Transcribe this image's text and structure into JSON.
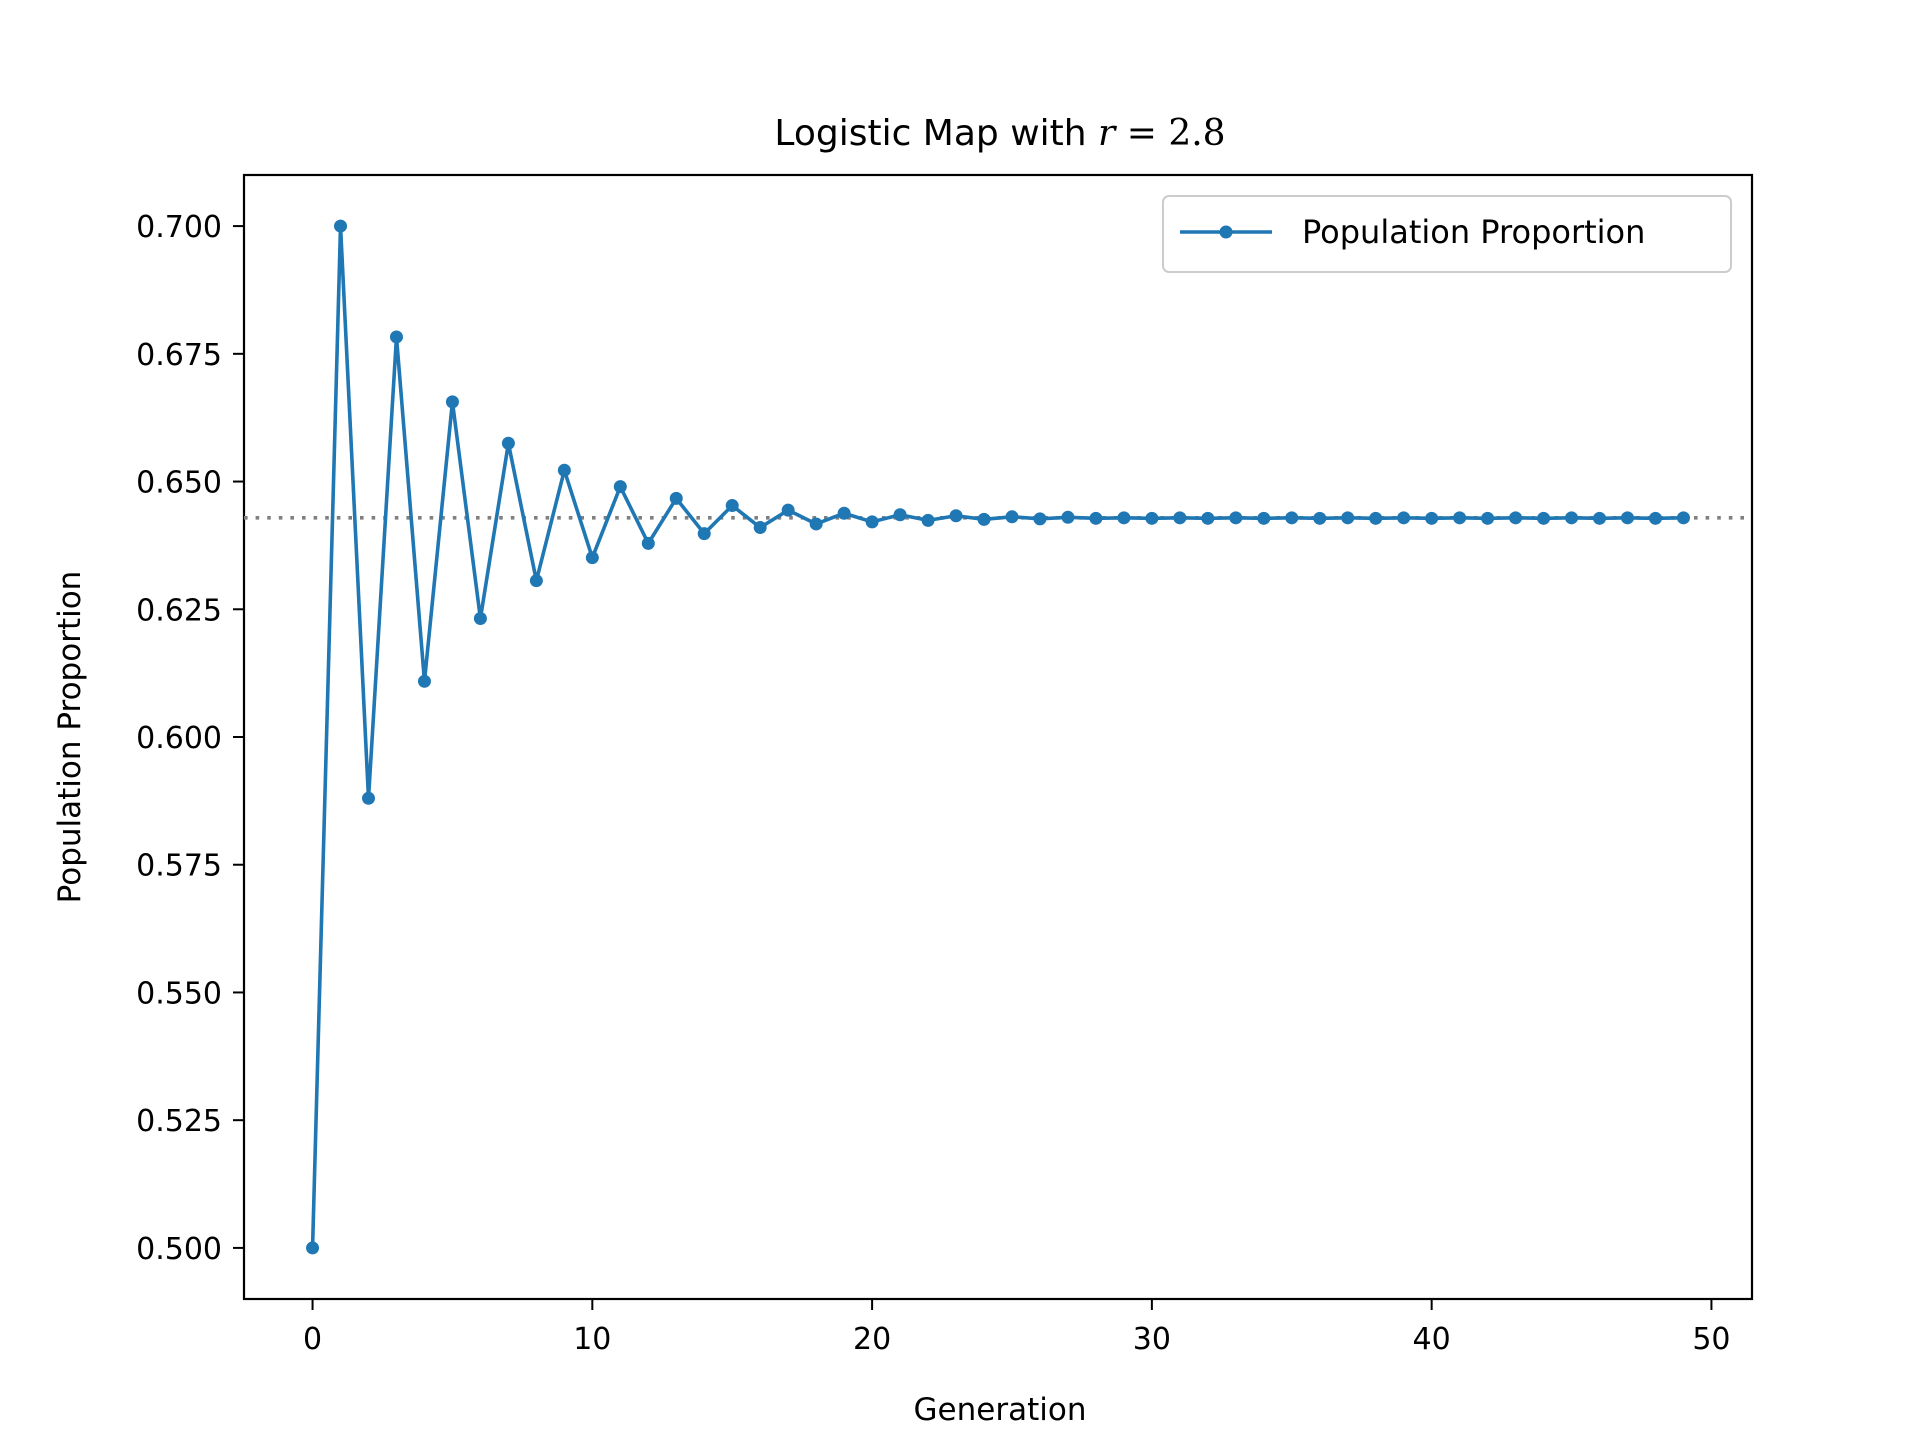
{
  "chart_data": {
    "type": "line",
    "title": {
      "prefix": "Logistic Map with ",
      "math_var": "r",
      "math_op": " = ",
      "math_value": "2.8"
    },
    "xlabel": "Generation",
    "ylabel": "Population Proportion",
    "xlim": [
      -2.45,
      51.45
    ],
    "ylim": [
      0.49,
      0.71
    ],
    "xticks": [
      "0",
      "10",
      "20",
      "30",
      "40",
      "50"
    ],
    "xtick_values": [
      0,
      10,
      20,
      30,
      40,
      50
    ],
    "yticks": [
      "0.500",
      "0.525",
      "0.550",
      "0.575",
      "0.600",
      "0.625",
      "0.650",
      "0.675",
      "0.700"
    ],
    "ytick_values": [
      0.5,
      0.525,
      0.55,
      0.575,
      0.6,
      0.625,
      0.65,
      0.675,
      0.7
    ],
    "grid": false,
    "legend_position": "top-right",
    "series": [
      {
        "name": "Population Proportion",
        "color": "#1f77b4",
        "marker": "circle",
        "x": [
          0,
          1,
          2,
          3,
          4,
          5,
          6,
          7,
          8,
          9,
          10,
          11,
          12,
          13,
          14,
          15,
          16,
          17,
          18,
          19,
          20,
          21,
          22,
          23,
          24,
          25,
          26,
          27,
          28,
          29,
          30,
          31,
          32,
          33,
          34,
          35,
          36,
          37,
          38,
          39,
          40,
          41,
          42,
          43,
          44,
          45,
          46,
          47,
          48,
          49
        ],
        "y": [
          0.5,
          0.7,
          0.588,
          0.6783,
          0.6109,
          0.6656,
          0.6232,
          0.6575,
          0.6306,
          0.6522,
          0.6351,
          0.649,
          0.6379,
          0.6467,
          0.6398,
          0.6453,
          0.641,
          0.6444,
          0.6417,
          0.6438,
          0.6421,
          0.6435,
          0.6424,
          0.6433,
          0.6426,
          0.6431,
          0.6427,
          0.643,
          0.6428,
          0.6429,
          0.6428,
          0.6429,
          0.6428,
          0.6429,
          0.6428,
          0.6429,
          0.6428,
          0.6429,
          0.6428,
          0.6429,
          0.6428,
          0.6429,
          0.6428,
          0.6429,
          0.6428,
          0.6429,
          0.6428,
          0.6429,
          0.6428,
          0.6429
        ]
      }
    ],
    "reference_line": {
      "y": 0.6429,
      "style": "dotted",
      "color": "#808080"
    }
  }
}
